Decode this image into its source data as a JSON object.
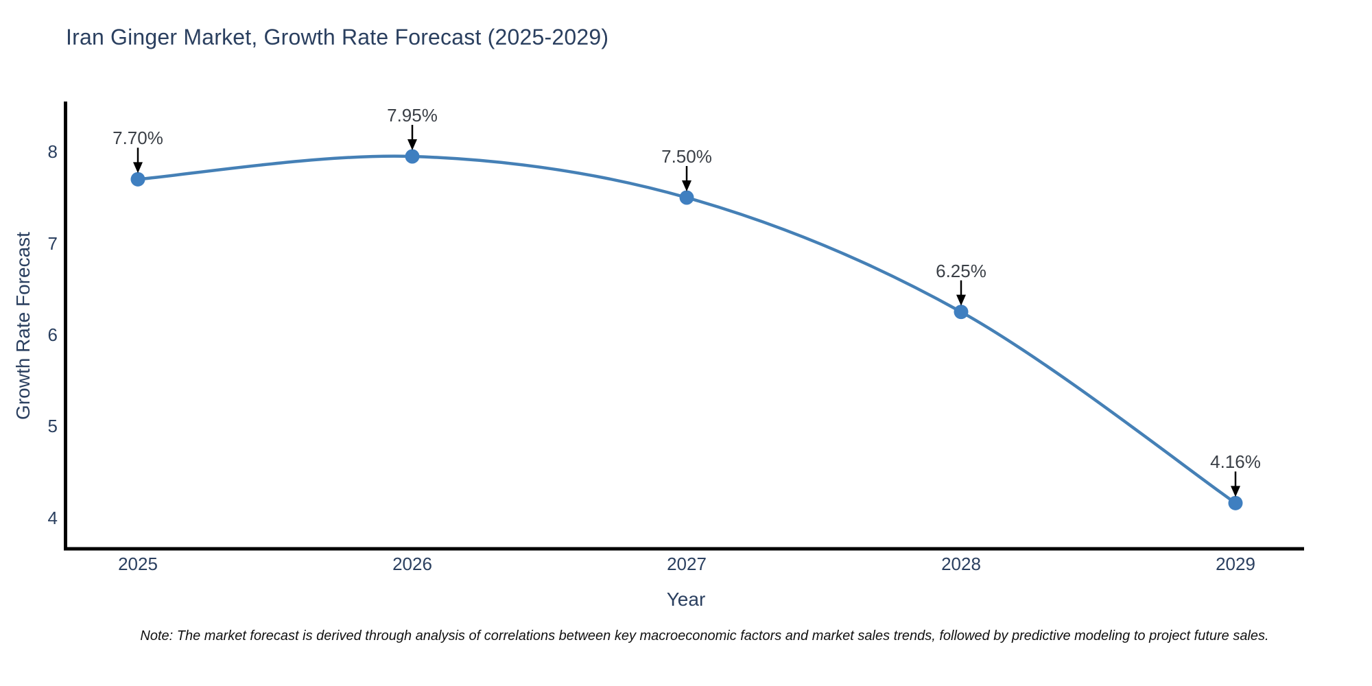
{
  "note": "Note: The market forecast is derived through analysis of correlations between key macroeconomic factors and market sales trends, followed by predictive modeling to project future sales.",
  "chart_data": {
    "type": "line",
    "title": "Iran Ginger Market, Growth Rate Forecast (2025-2029)",
    "xlabel": "Year",
    "ylabel": "Growth Rate Forecast",
    "x": [
      2025,
      2026,
      2027,
      2028,
      2029
    ],
    "values": [
      7.7,
      7.95,
      7.5,
      6.25,
      4.16
    ],
    "point_labels": [
      "7.70%",
      "7.95%",
      "7.50%",
      "6.25%",
      "4.16%"
    ],
    "y_ticks": [
      4,
      5,
      6,
      7,
      8
    ],
    "xlim": [
      2024.73,
      2029.25
    ],
    "ylim": [
      3.66,
      8.55
    ],
    "line_shape": "spline",
    "grid": false,
    "legend_visible": false,
    "colors": {
      "line": "#4580b6",
      "marker": "#3f7fc0",
      "axis_line": "#000000",
      "axis_text": "#2a3f5f",
      "annotation_text": "#3a3f46",
      "arrow": "#000000",
      "background": "#ffffff"
    }
  }
}
